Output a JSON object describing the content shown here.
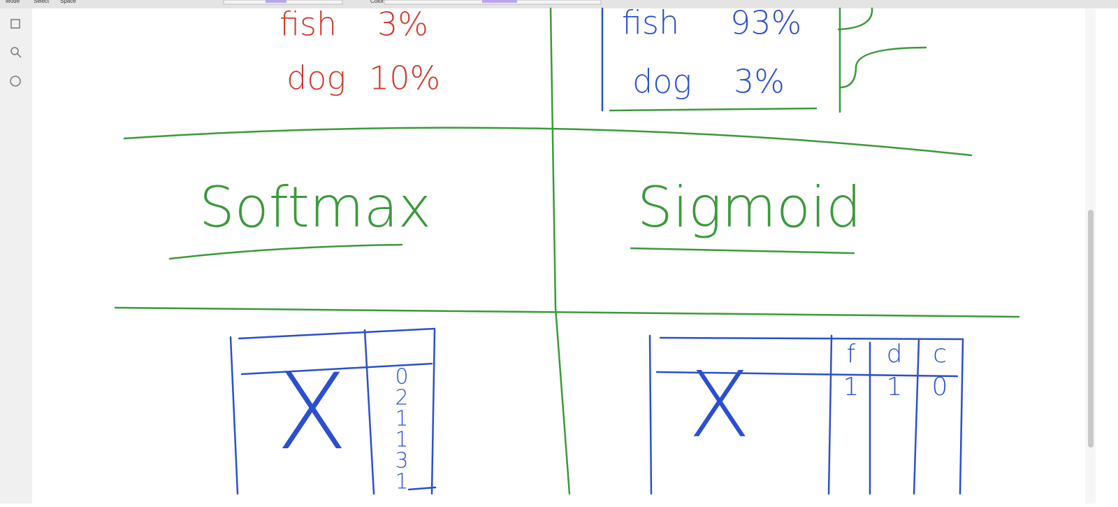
{
  "toolbar": {
    "labels": [
      "Mode",
      "Select",
      "Space",
      "Color"
    ]
  },
  "canvas": {
    "softmax_probs": [
      {
        "label": "fish",
        "pct": "3%"
      },
      {
        "label": "dog",
        "pct": "10%"
      }
    ],
    "sigmoid_probs": [
      {
        "label": "fish",
        "pct": "93%"
      },
      {
        "label": "dog",
        "pct": "3%"
      }
    ],
    "left_heading": "Softmax",
    "right_heading": "Sigmoid",
    "left_table": {
      "input": "X",
      "labels": [
        "0",
        "2",
        "1",
        "1",
        "3",
        "1"
      ]
    },
    "right_table": {
      "input": "X",
      "headers": [
        "f",
        "d",
        "c"
      ],
      "row": [
        "1",
        "1",
        "0"
      ]
    }
  }
}
